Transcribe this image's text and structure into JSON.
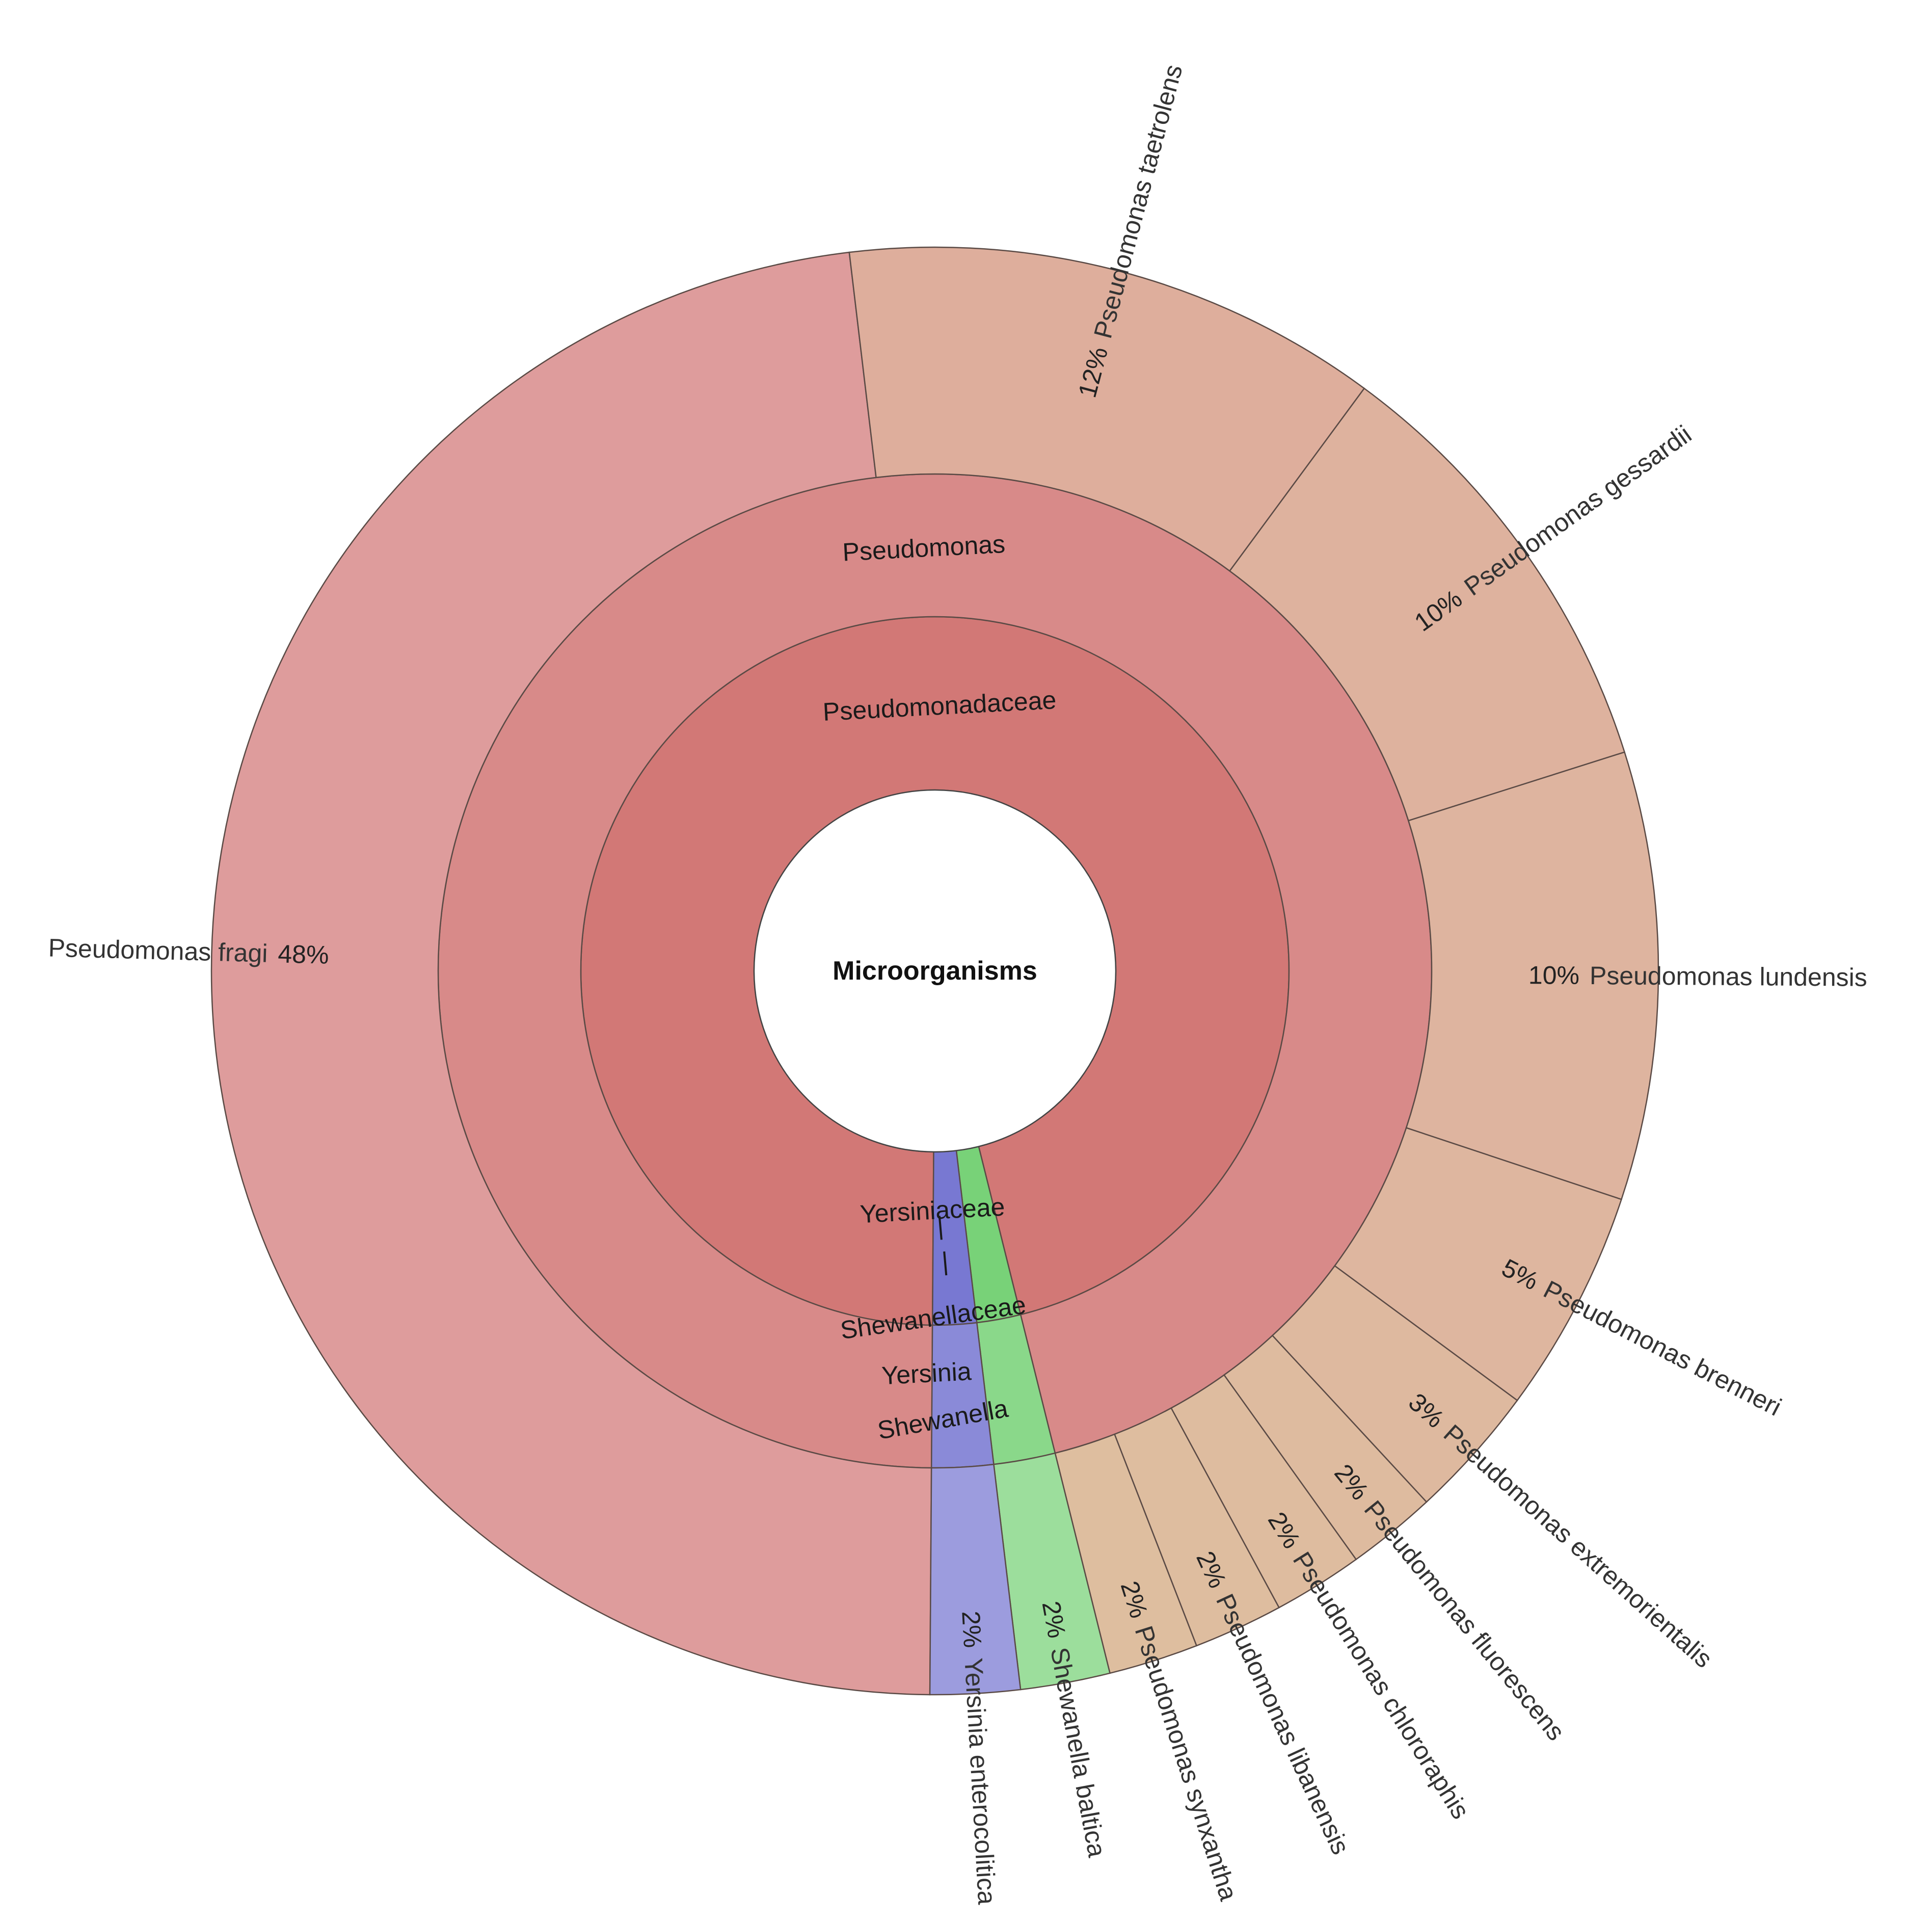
{
  "chart_data": {
    "type": "sunburst",
    "title": "Microorganisms",
    "levels": [
      {
        "name": "family",
        "items": [
          {
            "label": "Pseudomonadaceae",
            "value": 96,
            "color": "#d27876"
          },
          {
            "label": "Yersiniaceae",
            "value": 2,
            "color": "#7878d2"
          },
          {
            "label": "Shewanellaceae",
            "value": 2,
            "color": "#78d278"
          }
        ]
      },
      {
        "name": "genus",
        "items": [
          {
            "label": "Pseudomonas",
            "value": 96,
            "color": "#d88a89"
          },
          {
            "label": "Yersinia",
            "value": 2,
            "color": "#8a8ad8"
          },
          {
            "label": "Shewanella",
            "value": 2,
            "color": "#8ad88a"
          }
        ]
      },
      {
        "name": "species",
        "items": [
          {
            "label": "Pseudomonas fragi",
            "percent_label": "48%",
            "value": 48,
            "color": "#de9c9c"
          },
          {
            "label": "Pseudomonas taetrolens",
            "percent_label": "12%",
            "value": 12,
            "color": "#deae9c"
          },
          {
            "label": "Pseudomonas gessardii",
            "percent_label": "10%",
            "value": 10,
            "color": "#deb29e"
          },
          {
            "label": "Pseudomonas lundensis",
            "percent_label": "10%",
            "value": 10,
            "color": "#deb49f"
          },
          {
            "label": "Pseudomonas brenneri",
            "percent_label": "5%",
            "value": 5,
            "color": "#deb69f"
          },
          {
            "label": "Pseudomonas extremorientalis",
            "percent_label": "3%",
            "value": 3,
            "color": "#deb99f"
          },
          {
            "label": "Pseudomonas fluorescens",
            "percent_label": "2%",
            "value": 2,
            "color": "#debb9f"
          },
          {
            "label": "Pseudomonas chlororaphis",
            "percent_label": "2%",
            "value": 2,
            "color": "#debc9f"
          },
          {
            "label": "Pseudomonas libanensis",
            "percent_label": "2%",
            "value": 2,
            "color": "#debd9f"
          },
          {
            "label": "Pseudomonas synxantha",
            "percent_label": "2%",
            "value": 2,
            "color": "#debe9f"
          },
          {
            "label": "Shewanella baltica",
            "percent_label": "2%",
            "value": 2,
            "color": "#9cde9c"
          },
          {
            "label": "Yersinia enterocolitica",
            "percent_label": "2%",
            "value": 2,
            "color": "#9c9cde"
          }
        ]
      }
    ],
    "connector_marks": [
      "|",
      "|"
    ]
  }
}
